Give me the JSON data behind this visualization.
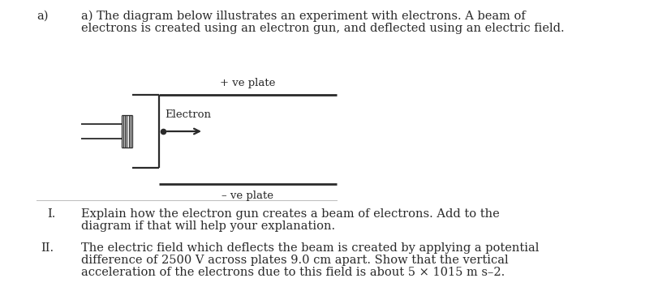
{
  "background_color": "#ffffff",
  "title_label_a": "a)",
  "title_text_line1": "a) The diagram below illustrates an experiment with electrons. A beam of",
  "title_text_line2": "electrons is created using an electron gun, and deflected using an electric field.",
  "plus_ve_label": "+ ve plate",
  "minus_ve_label": "– ve plate",
  "electron_label": "Electron",
  "roman_I": "I.",
  "roman_II": "II.",
  "text_I_line1": "Explain how the electron gun creates a beam of electrons. Add to the",
  "text_I_line2": "diagram if that will help your explanation.",
  "text_II_line1": "The electric field which deflects the beam is created by applying a potential",
  "text_II_line2": "difference of 2500 V across plates 9.0 cm apart. Show that the vertical",
  "text_II_line3": "acceleration of the electrons due to this field is about 5 × 1015 m s–2.",
  "font_size": 10.5,
  "text_color": "#2a2a2a",
  "line_color": "#2a2a2a"
}
